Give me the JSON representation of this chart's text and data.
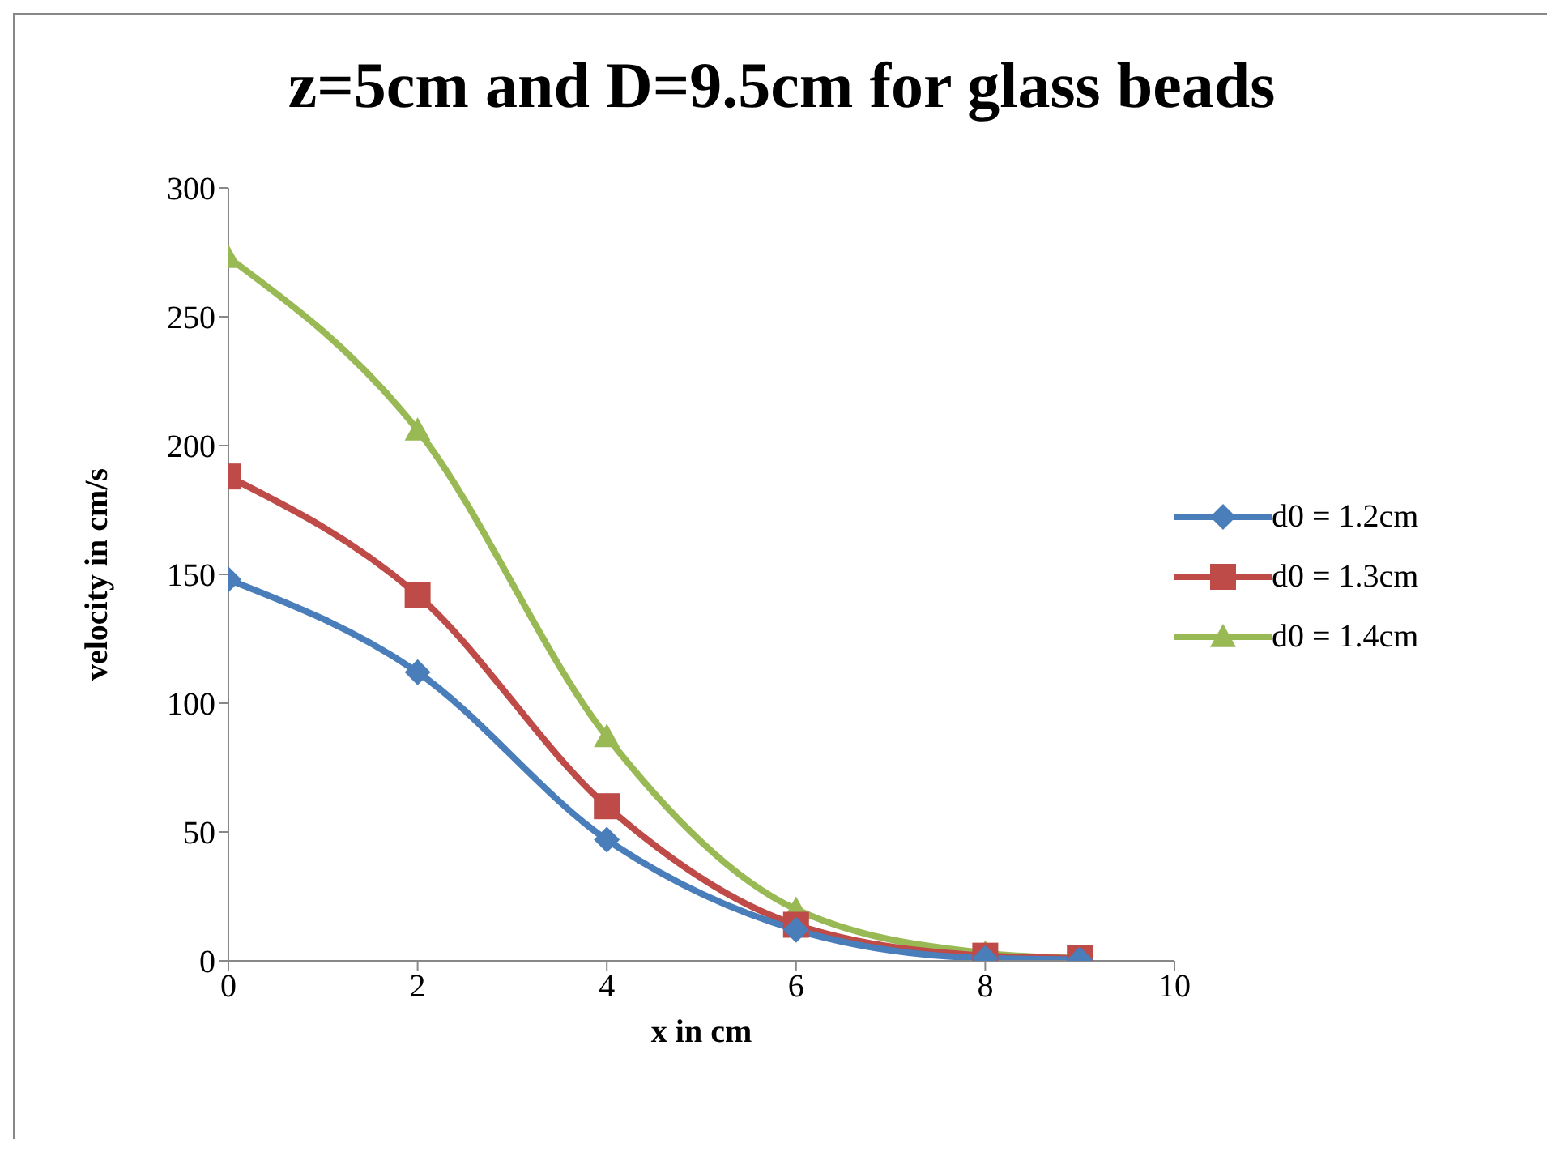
{
  "chart_data": {
    "type": "line",
    "title": "z=5cm and D=9.5cm for glass beads",
    "xlabel": "x in cm",
    "ylabel": "velocity in cm/s",
    "x": [
      0,
      2,
      4,
      6,
      8,
      9
    ],
    "series": [
      {
        "name": "d0 = 1.2cm",
        "color": "#4a7ebb",
        "marker": "diamond",
        "values": [
          148,
          112,
          47,
          12,
          1,
          0.5
        ]
      },
      {
        "name": "d0 = 1.3cm",
        "color": "#be4b48",
        "marker": "square",
        "values": [
          188,
          142,
          60,
          14,
          2,
          1
        ]
      },
      {
        "name": "d0 = 1.4cm",
        "color": "#98b954",
        "marker": "triangle",
        "values": [
          273,
          206,
          87,
          20,
          3,
          1
        ]
      }
    ],
    "xlim": [
      0,
      10
    ],
    "xticks": [
      0,
      2,
      4,
      6,
      8,
      10
    ],
    "ylim": [
      0,
      300
    ],
    "yticks": [
      0,
      50,
      100,
      150,
      200,
      250,
      300
    ],
    "grid": false,
    "legend": "right"
  }
}
